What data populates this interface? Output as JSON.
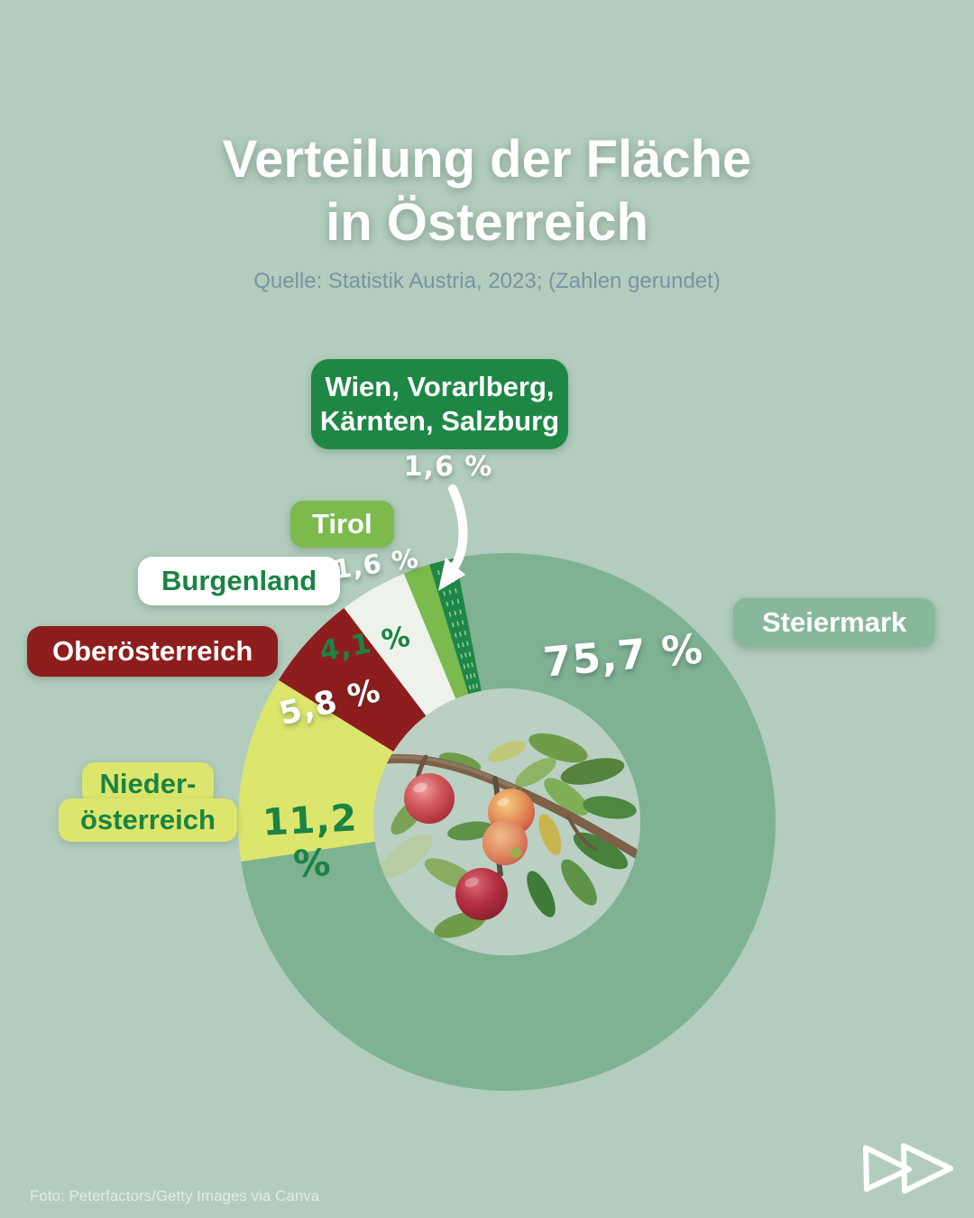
{
  "header": {
    "title_line1": "Verteilung der Fläche",
    "title_line2": "in Österreich",
    "subtitle": "Quelle: Statistik Austria, 2023; (Zahlen gerundet)"
  },
  "chart_data": {
    "type": "pie",
    "subtype": "donut",
    "title": "Verteilung der Fläche in Österreich",
    "source": "Statistik Austria, 2023",
    "note": "Zahlen gerundet",
    "unit": "%",
    "start_angle_deg": -11,
    "direction": "clockwise",
    "outer_radius_px": 298,
    "inner_radius_px": 148,
    "series": [
      {
        "id": "steiermark",
        "name": "Steiermark",
        "value": 75.7,
        "label": "75,7 %",
        "color": "#7fb193"
      },
      {
        "id": "niederoesterreich",
        "name": "Niederösterreich",
        "value": 11.2,
        "label": "11,2 %",
        "color": "#dce66c"
      },
      {
        "id": "oberoesterreich",
        "name": "Oberösterreich",
        "value": 5.8,
        "label": "5,8 %",
        "color": "#8e1d1d"
      },
      {
        "id": "burgenland",
        "name": "Burgenland",
        "value": 4.1,
        "label": "4,1 %",
        "color": "#edf3ea"
      },
      {
        "id": "tirol",
        "name": "Tirol",
        "value": 1.6,
        "label": "1,6 %",
        "color": "#7cba4e"
      },
      {
        "id": "wien_group",
        "name": "Wien, Vorarlberg, Kärnten, Salzburg",
        "value": 1.6,
        "label": "1,6 %",
        "color": "#1e8745",
        "sub_dividers": 3
      }
    ]
  },
  "labels": {
    "wien_group": {
      "line1": "Wien, Vorarlberg,",
      "line2": "Kärnten, Salzburg"
    },
    "niederoesterreich": {
      "line1": "Nieder-",
      "line2": "österreich"
    }
  },
  "colors": {
    "background": "#b2cdbd",
    "steiermark_badge": "#88b89c",
    "wien_badge": "#1e8745",
    "tirol_badge": "#7cba4e",
    "oberoesterreich_badge": "#8e1d1d",
    "niederoesterreich_badge": "#dce66c",
    "burgenland_badge_bg": "#ffffff",
    "green_text": "#1b8344",
    "subtitle_text": "#7994a1",
    "photo_circle_bg": "#bad0c3"
  },
  "footer": {
    "credit": "Foto: Peterfactors/Getty Images via Canva"
  },
  "logo": {
    "name": "double-play-forward-logo"
  }
}
